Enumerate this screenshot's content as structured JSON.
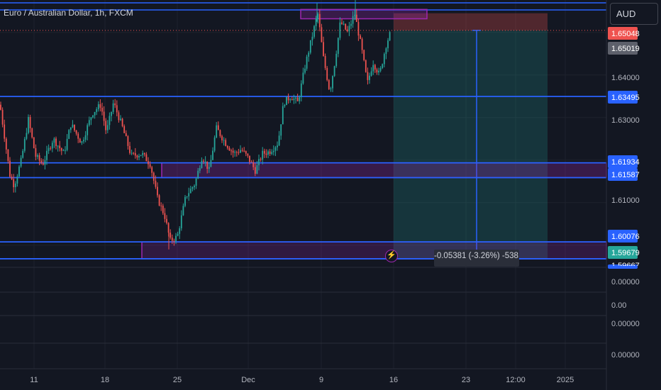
{
  "header": {
    "symbol_title": "Euro / Australian Dollar, 1h, FXCM",
    "currency_button": "AUD"
  },
  "colors": {
    "background": "#131722",
    "up": "#26a69a",
    "down": "#ef5350",
    "level_line": "#2962ff",
    "zone": "#9c27b0",
    "target_zone": "#26a69a",
    "stop_zone": "#ef5350"
  },
  "price_tags": [
    {
      "label": "1.65048",
      "kind": "last-price"
    },
    {
      "label": "1.65019",
      "kind": "reference"
    },
    {
      "label": "1.63495",
      "kind": "level"
    },
    {
      "label": "1.61934",
      "kind": "level"
    },
    {
      "label": "1.61587",
      "kind": "level"
    },
    {
      "label": "1.60076",
      "kind": "level"
    },
    {
      "label": "1.59679",
      "kind": "target"
    },
    {
      "label": "1.59667",
      "kind": "level-cut"
    }
  ],
  "position_tool": {
    "measure_label": "-0.05381 (-3.26%) -538.1",
    "flash_icon": "lightning-icon"
  },
  "indicator_panes": [
    {
      "value_label": "0.00000"
    },
    {
      "value_label": "0.00"
    },
    {
      "value_label": "0.00000"
    },
    {
      "value_label": "0.00000"
    }
  ],
  "chart_data": {
    "type": "candlestick",
    "symbol": "Euro / Australian Dollar",
    "interval": "1h",
    "source": "FXCM",
    "price_axis_ticks": [
      "1.64000",
      "1.63000",
      "1.61000"
    ],
    "time_axis_ticks": [
      "11",
      "18",
      "25",
      "Dec",
      "9",
      "16",
      "23",
      "12:00",
      "2025"
    ],
    "series_path": [
      [
        0,
        1.633
      ],
      [
        14,
        1.6165
      ],
      [
        20,
        1.614
      ],
      [
        30,
        1.62
      ],
      [
        40,
        1.6295
      ],
      [
        50,
        1.621
      ],
      [
        60,
        1.619
      ],
      [
        75,
        1.625
      ],
      [
        90,
        1.6215
      ],
      [
        100,
        1.6285
      ],
      [
        115,
        1.624
      ],
      [
        130,
        1.631
      ],
      [
        142,
        1.633
      ],
      [
        150,
        1.6265
      ],
      [
        160,
        1.6335
      ],
      [
        172,
        1.628
      ],
      [
        185,
        1.621
      ],
      [
        200,
        1.6215
      ],
      [
        212,
        1.619
      ],
      [
        222,
        1.611
      ],
      [
        232,
        1.607
      ],
      [
        240,
        1.601
      ],
      [
        250,
        1.602
      ],
      [
        262,
        1.6115
      ],
      [
        275,
        1.6145
      ],
      [
        285,
        1.621
      ],
      [
        295,
        1.6175
      ],
      [
        305,
        1.6275
      ],
      [
        318,
        1.624
      ],
      [
        330,
        1.6215
      ],
      [
        340,
        1.6225
      ],
      [
        350,
        1.6205
      ],
      [
        360,
        1.6175
      ],
      [
        370,
        1.6215
      ],
      [
        380,
        1.622
      ],
      [
        392,
        1.624
      ],
      [
        400,
        1.6335
      ],
      [
        410,
        1.635
      ],
      [
        420,
        1.6335
      ],
      [
        430,
        1.642
      ],
      [
        440,
        1.649
      ],
      [
        448,
        1.6545
      ],
      [
        456,
        1.644
      ],
      [
        465,
        1.636
      ],
      [
        472,
        1.643
      ],
      [
        480,
        1.6525
      ],
      [
        490,
        1.65
      ],
      [
        500,
        1.6545
      ],
      [
        510,
        1.646
      ],
      [
        518,
        1.638
      ],
      [
        526,
        1.643
      ],
      [
        535,
        1.64
      ],
      [
        545,
        1.6475
      ],
      [
        552,
        1.6505
      ]
    ],
    "horizontal_levels": [
      1.63495,
      1.61934,
      1.61587,
      1.60076,
      1.59679
    ],
    "supply_zone": [
      1.6532,
      1.6554
    ],
    "demand_zones": [
      [
        1.61587,
        1.61934
      ],
      [
        1.59679,
        1.60076
      ]
    ],
    "short_position": {
      "entry": 1.65048,
      "stop": 1.6545,
      "target": 1.59667
    },
    "measure_value": -0.05381,
    "measure_percent": -3.26,
    "measure_ticks": -538.1,
    "main_plot": {
      "ylim": [
        1.595,
        1.658
      ]
    }
  }
}
